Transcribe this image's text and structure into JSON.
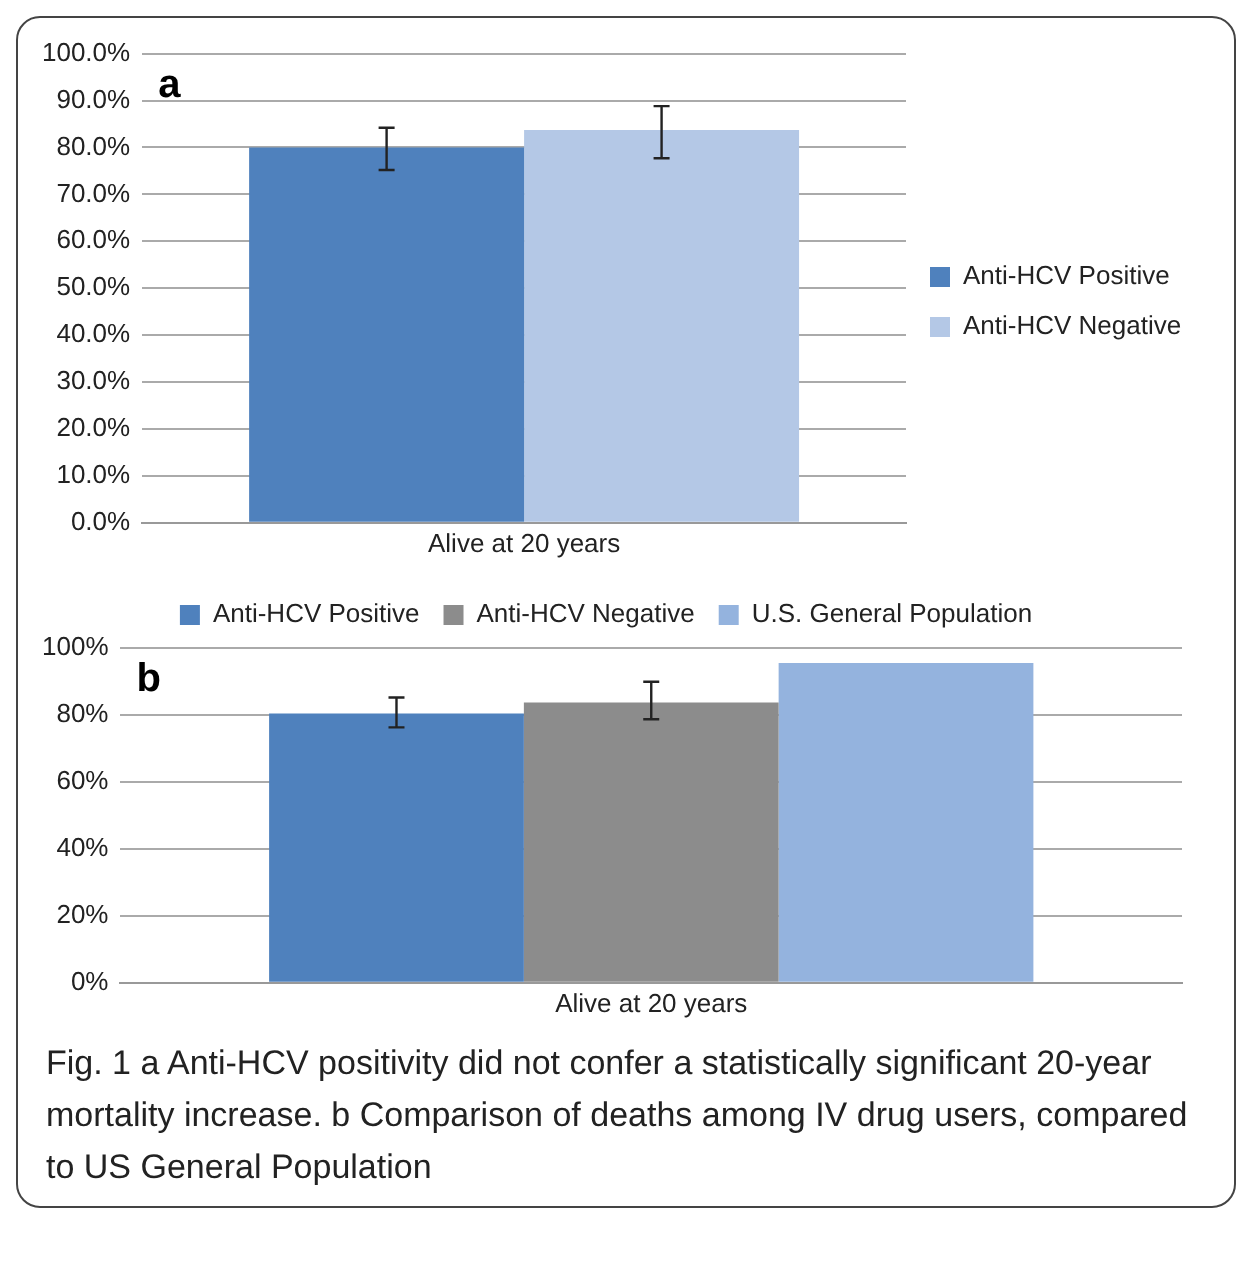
{
  "chart_data": [
    {
      "type": "bar",
      "title": "a",
      "categories": [
        "Alive at 20 years"
      ],
      "series": [
        {
          "name": "Anti-HCV Positive",
          "color": "#4f81bd",
          "values": [
            80
          ],
          "errors": [
            [
              75.2,
              84.2
            ]
          ]
        },
        {
          "name": "Anti-HCV Negative",
          "color": "#b4c8e6",
          "values": [
            83.7
          ],
          "errors": [
            [
              77.7,
              88.8
            ]
          ]
        }
      ],
      "ylim": [
        0,
        100
      ],
      "yticks": [
        {
          "value": 0,
          "label": "0.0%"
        },
        {
          "value": 10,
          "label": "10.0%"
        },
        {
          "value": 20,
          "label": "20.0%"
        },
        {
          "value": 30,
          "label": "30.0%"
        },
        {
          "value": 40,
          "label": "40.0%"
        },
        {
          "value": 50,
          "label": "50.0%"
        },
        {
          "value": 60,
          "label": "60.0%"
        },
        {
          "value": 70,
          "label": "70.0%"
        },
        {
          "value": 80,
          "label": "80.0%"
        },
        {
          "value": 90,
          "label": "90.0%"
        },
        {
          "value": 100,
          "label": "100.0%"
        }
      ],
      "grid": "y",
      "legend": "right"
    },
    {
      "type": "bar",
      "title": "b",
      "categories": [
        "Alive at 20 years"
      ],
      "series": [
        {
          "name": "Anti-HCV Positive",
          "color": "#4f81bd",
          "values": [
            80.4
          ],
          "errors": [
            [
              76.3,
              85.2
            ]
          ]
        },
        {
          "name": "Anti-HCV Negative",
          "color": "#8c8c8c",
          "values": [
            83.7
          ],
          "errors": [
            [
              78.7,
              89.9
            ]
          ]
        },
        {
          "name": "U.S. General Population",
          "color": "#94b3de",
          "values": [
            95.5
          ]
        }
      ],
      "ylim": [
        0,
        100
      ],
      "yticks": [
        {
          "value": 0,
          "label": "0%"
        },
        {
          "value": 20,
          "label": "20%"
        },
        {
          "value": 40,
          "label": "40%"
        },
        {
          "value": 60,
          "label": "60%"
        },
        {
          "value": 80,
          "label": "80%"
        },
        {
          "value": 100,
          "label": "100%"
        }
      ],
      "grid": "y",
      "legend": "top",
      "annotations": [
        "Fig. 1 a Anti-HCV positivity did not confer a statistically significant 20-year mortality increase. b Comparison of deaths among IV drug users, compared to US General Population"
      ]
    }
  ]
}
